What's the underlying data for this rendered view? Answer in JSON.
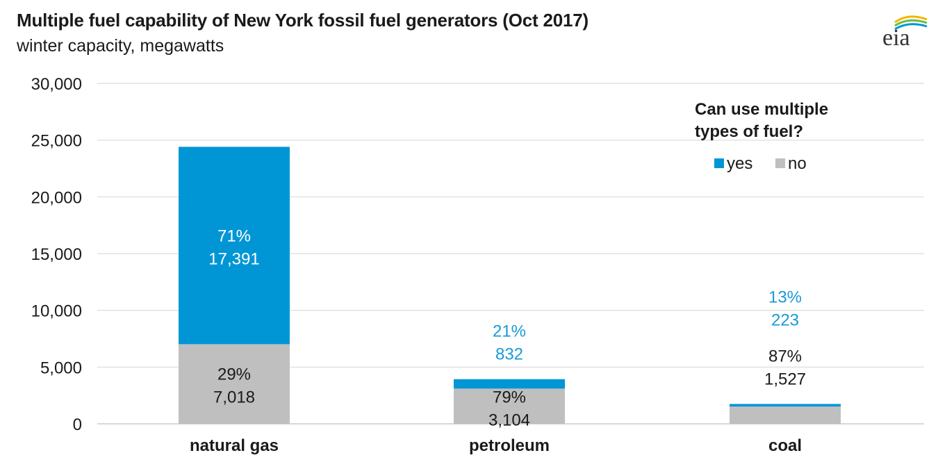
{
  "header": {
    "title": "Multiple fuel capability of New York fossil fuel generators (Oct 2017)",
    "subtitle": "winter capacity, megawatts",
    "logo_text": "eia"
  },
  "colors": {
    "yes": "#0096d6",
    "no": "#bfbfbf",
    "yes_label": "#1a9ad6",
    "no_label": "#1a1a1a",
    "grid": "#d9d9d9"
  },
  "legend": {
    "title": "Can use multiple types of fuel?",
    "items": [
      {
        "label": "yes",
        "color": "#0096d6"
      },
      {
        "label": "no",
        "color": "#bfbfbf"
      }
    ]
  },
  "chart_data": {
    "type": "bar",
    "stacked": true,
    "title": "Multiple fuel capability of New York fossil fuel generators (Oct 2017)",
    "subtitle": "winter capacity, megawatts",
    "categories": [
      "natural gas",
      "petroleum",
      "coal"
    ],
    "series": [
      {
        "name": "no",
        "values": [
          7018,
          3104,
          1527
        ],
        "labels": [
          "29%\n7,018",
          "79%\n3,104",
          "87%\n1,527"
        ]
      },
      {
        "name": "yes",
        "values": [
          17391,
          832,
          223
        ],
        "labels": [
          "71%\n17,391",
          "21%\n832",
          "13%\n223"
        ]
      }
    ],
    "ylim": [
      0,
      30000
    ],
    "yticks": [
      0,
      5000,
      10000,
      15000,
      20000,
      25000,
      30000
    ],
    "ytick_labels": [
      "0",
      "5,000",
      "10,000",
      "15,000",
      "20,000",
      "25,000",
      "30,000"
    ],
    "grid": true,
    "legend_position": "top-right"
  }
}
